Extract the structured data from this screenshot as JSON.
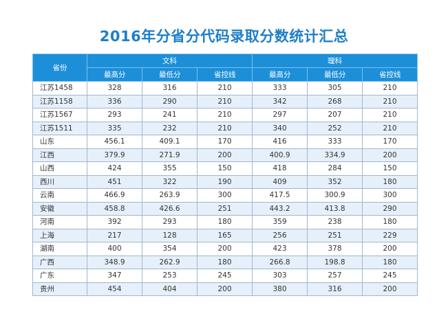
{
  "title": "2016年分省分代码录取分数统计汇总",
  "table": {
    "province_header": "省份",
    "groups": [
      "文科",
      "理科"
    ],
    "subheaders": [
      "最高分",
      "最低分",
      "省控线",
      "最高分",
      "最低分",
      "省控线"
    ],
    "rows": [
      [
        "江苏1458",
        "328",
        "316",
        "210",
        "333",
        "305",
        "210"
      ],
      [
        "江苏1158",
        "336",
        "290",
        "210",
        "342",
        "268",
        "210"
      ],
      [
        "江苏1567",
        "293",
        "241",
        "210",
        "297",
        "207",
        "210"
      ],
      [
        "江苏1511",
        "335",
        "232",
        "210",
        "340",
        "252",
        "210"
      ],
      [
        "山东",
        "456.1",
        "409.1",
        "170",
        "416",
        "333",
        "170"
      ],
      [
        "江西",
        "379.9",
        "271.9",
        "200",
        "400.9",
        "334.9",
        "200"
      ],
      [
        "山西",
        "424",
        "355",
        "150",
        "418",
        "284",
        "150"
      ],
      [
        "西川",
        "451",
        "322",
        "190",
        "409",
        "352",
        "180"
      ],
      [
        "云南",
        "466.9",
        "263.9",
        "300",
        "417.5",
        "300.9",
        "300"
      ],
      [
        "安徽",
        "458.8",
        "426.6",
        "251",
        "443.2",
        "413.8",
        "290"
      ],
      [
        "河南",
        "392",
        "293",
        "180",
        "359",
        "238",
        "180"
      ],
      [
        "上海",
        "217",
        "128",
        "165",
        "256",
        "251",
        "229"
      ],
      [
        "湖南",
        "400",
        "354",
        "200",
        "423",
        "378",
        "200"
      ],
      [
        "广西",
        "348.9",
        "262.9",
        "180",
        "266.8",
        "198.8",
        "180"
      ],
      [
        "广东",
        "347",
        "253",
        "245",
        "303",
        "257",
        "245"
      ],
      [
        "贵州",
        "454",
        "404",
        "200",
        "380",
        "316",
        "200"
      ]
    ]
  },
  "colors": {
    "title": "#1e7ec8",
    "header_bg": "#1d8fd8",
    "row_alt_bg": "#e6f0fb"
  }
}
